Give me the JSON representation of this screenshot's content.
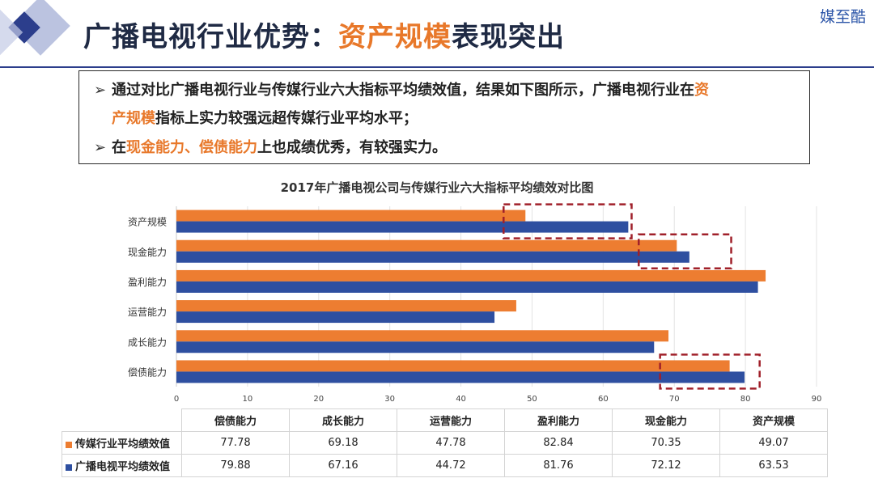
{
  "title": {
    "prefix": "广播电视行业优势：",
    "highlight": "资产规模",
    "suffix": "表现突出"
  },
  "brand": "媒至酷",
  "bullets": {
    "marker": "➢",
    "l1": "通过对比广播电视行业与传媒行业六大指标平均绩效值，结果如下图所示，广播电视行业在",
    "l1_hl": "资",
    "l2_hl": "产规模",
    "l2": "指标上实力较强远超传媒行业平均水平；",
    "l3_pre": "在",
    "l3_hl": "现金能力、偿债能力",
    "l3_post": "上也成绩优秀，有较强实力。"
  },
  "colors": {
    "orange": "#ed7d31",
    "blue": "#2e4fa0",
    "highlight_text": "#e8782a",
    "dashed": "#a0202a"
  },
  "chart_data": {
    "type": "bar",
    "orientation": "horizontal",
    "title": "2017年广播电视公司与传媒行业六大指标平均绩效对比图",
    "categories": [
      "偿债能力",
      "成长能力",
      "运营能力",
      "盈利能力",
      "现金能力",
      "资产规模"
    ],
    "series": [
      {
        "name": "传媒行业平均绩效值",
        "values": [
          77.78,
          69.18,
          47.78,
          82.84,
          70.35,
          49.07
        ]
      },
      {
        "name": "广播电视平均绩效值",
        "values": [
          79.88,
          67.16,
          44.72,
          81.76,
          72.12,
          63.53
        ]
      }
    ],
    "xlim": [
      0,
      90
    ],
    "xticks": [
      "0",
      "10",
      "20",
      "30",
      "40",
      "50",
      "60",
      "70",
      "80",
      "90"
    ],
    "grid": true,
    "legend": "data-table",
    "annotations": [
      {
        "category": "资产规模",
        "x_range": [
          46,
          64
        ],
        "style": "dashed-box"
      },
      {
        "category": "现金能力",
        "x_range": [
          65,
          78
        ],
        "style": "dashed-box"
      },
      {
        "category": "偿债能力",
        "x_range": [
          68,
          82
        ],
        "style": "dashed-box"
      }
    ]
  }
}
